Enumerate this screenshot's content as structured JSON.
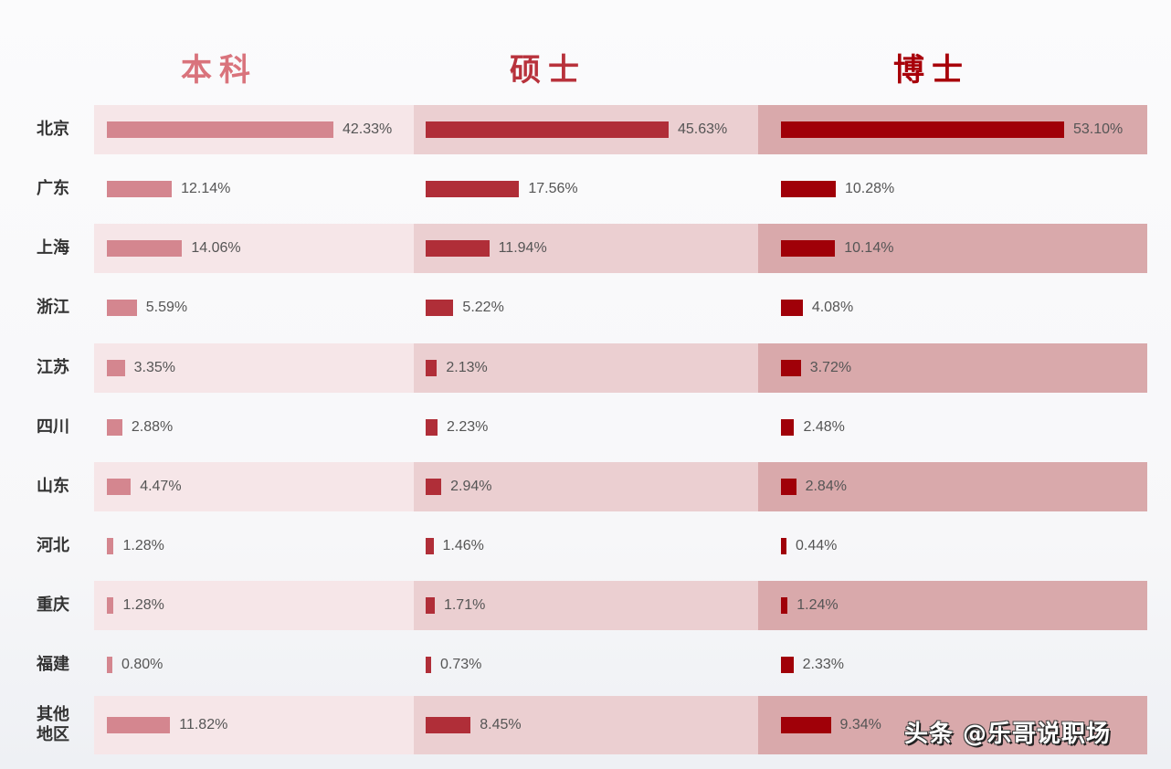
{
  "chart_data": {
    "type": "bar",
    "orientation": "horizontal",
    "title": "",
    "categories": [
      "北京",
      "广东",
      "上海",
      "浙江",
      "江苏",
      "四川",
      "山东",
      "河北",
      "重庆",
      "福建",
      "其他地区"
    ],
    "series": [
      {
        "name": "本科",
        "color": "#d4868f",
        "values": [
          42.33,
          12.14,
          14.06,
          5.59,
          3.35,
          2.88,
          4.47,
          1.28,
          1.28,
          0.8,
          11.82
        ],
        "labels": [
          "42.33%",
          "12.14%",
          "14.06%",
          "5.59%",
          "3.35%",
          "2.88%",
          "4.47%",
          "1.28%",
          "1.28%",
          "0.80%",
          "11.82%"
        ]
      },
      {
        "name": "硕士",
        "color": "#b02e38",
        "values": [
          45.63,
          17.56,
          11.94,
          5.22,
          2.13,
          2.23,
          2.94,
          1.46,
          1.71,
          0.73,
          8.45
        ],
        "labels": [
          "45.63%",
          "17.56%",
          "11.94%",
          "5.22%",
          "2.13%",
          "2.23%",
          "2.94%",
          "1.46%",
          "1.71%",
          "0.73%",
          "8.45%"
        ]
      },
      {
        "name": "博士",
        "color": "#a00008",
        "values": [
          53.1,
          10.28,
          10.14,
          4.08,
          3.72,
          2.48,
          2.84,
          0.44,
          1.24,
          2.33,
          9.34
        ],
        "labels": [
          "53.10%",
          "10.28%",
          "10.14%",
          "4.08%",
          "3.72%",
          "2.48%",
          "2.84%",
          "0.44%",
          "1.24%",
          "2.33%",
          "9.34%"
        ]
      }
    ],
    "xlabel": "",
    "ylabel": "",
    "grid": false,
    "legend": "column headers at top"
  },
  "headers": {
    "undergrad": "本科",
    "master": "硕士",
    "phd": "博士"
  },
  "rows": [
    {
      "label": "北京"
    },
    {
      "label": "广东"
    },
    {
      "label": "上海"
    },
    {
      "label": "浙江"
    },
    {
      "label": "江苏"
    },
    {
      "label": "四川"
    },
    {
      "label": "山东"
    },
    {
      "label": "河北"
    },
    {
      "label": "重庆"
    },
    {
      "label": "福建"
    },
    {
      "label": "其他\n地区"
    }
  ],
  "colors": {
    "undergrad_title": "#d9737c",
    "master_title": "#b8323c",
    "phd_title": "#a8000a",
    "undergrad_bar": "#d4868f",
    "master_bar": "#b02e38",
    "phd_bar": "#a00008",
    "undergrad_band": "#f6e6e8",
    "master_band": "#ebcfd1",
    "phd_band": "#d9a9ab"
  },
  "watermark": "头条 @乐哥说职场"
}
